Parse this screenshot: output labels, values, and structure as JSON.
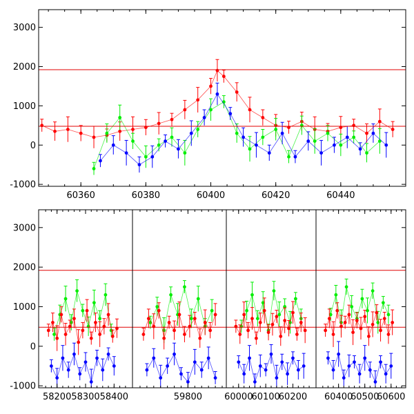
{
  "chart_data": [
    {
      "type": "scatter",
      "title": "",
      "xlabel": "",
      "ylabel": "",
      "xlim": [
        60347,
        60460
      ],
      "ylim": [
        -1050,
        3450
      ],
      "xticks": [
        60360,
        60380,
        60400,
        60420,
        60440
      ],
      "yticks": [
        -1000,
        0,
        1000,
        2000,
        3000
      ],
      "hlines": [
        1920,
        480
      ],
      "grid": false,
      "legend": "none",
      "series": [
        {
          "color": "#ff0000",
          "x": [
            60348,
            60352,
            60356,
            60360,
            60364,
            60368,
            60372,
            60376,
            60380,
            60384,
            60388,
            60392,
            60396,
            60400,
            60402,
            60404,
            60408,
            60412,
            60416,
            60420,
            60424,
            60428,
            60432,
            60436,
            60440,
            60444,
            60448,
            60452,
            60456
          ],
          "values": [
            500,
            350,
            400,
            300,
            200,
            250,
            350,
            400,
            450,
            550,
            650,
            900,
            1150,
            1500,
            1900,
            1750,
            1350,
            900,
            700,
            500,
            450,
            600,
            400,
            350,
            450,
            500,
            300,
            600,
            400
          ]
        },
        {
          "color": "#00ee00",
          "x": [
            60364,
            60368,
            60372,
            60376,
            60380,
            60384,
            60388,
            60392,
            60396,
            60400,
            60404,
            60408,
            60412,
            60416,
            60420,
            60424,
            60428,
            60432,
            60436,
            60440,
            60444,
            60448,
            60452
          ],
          "values": [
            -600,
            300,
            700,
            100,
            -300,
            0,
            200,
            -200,
            400,
            900,
            1100,
            300,
            -100,
            200,
            400,
            -300,
            500,
            100,
            300,
            0,
            200,
            -200,
            100
          ]
        },
        {
          "color": "#0000ff",
          "x": [
            60366,
            60370,
            60374,
            60378,
            60382,
            60386,
            60390,
            60394,
            60398,
            60402,
            60406,
            60410,
            60414,
            60418,
            60422,
            60426,
            60430,
            60434,
            60438,
            60442,
            60446,
            60450,
            60454
          ],
          "values": [
            -400,
            0,
            -200,
            -500,
            -300,
            100,
            -100,
            300,
            700,
            1300,
            800,
            200,
            0,
            -200,
            300,
            -300,
            100,
            -200,
            0,
            200,
            -100,
            300,
            0
          ]
        }
      ]
    },
    {
      "type": "scatter",
      "title": "",
      "xlabel": "",
      "ylabel": "",
      "broken_x_axis": true,
      "segments": [
        {
          "xlim": [
            58150,
            58450
          ],
          "xticks": [
            58200,
            58300,
            58400
          ]
        },
        {
          "xlim": [
            59650,
            59900
          ],
          "xticks": [
            59800
          ]
        },
        {
          "xlim": [
            59970,
            60270
          ],
          "xticks": [
            60000,
            60100,
            60200
          ]
        },
        {
          "xlim": [
            60330,
            60640
          ],
          "xticks": [
            60400,
            60500,
            60600
          ]
        }
      ],
      "ylim": [
        -1050,
        3450
      ],
      "yticks": [
        -1000,
        0,
        1000,
        2000,
        3000
      ],
      "hlines": [
        1920,
        480
      ],
      "grid": false,
      "legend": "none",
      "series": [
        {
          "color": "#0000ff",
          "segments": [
            {
              "x": [
                58180,
                58200,
                58220,
                58240,
                58260,
                58280,
                58300,
                58320,
                58340,
                58360,
                58380,
                58400
              ],
              "values": [
                -500,
                -800,
                -300,
                -600,
                -200,
                -700,
                -400,
                -900,
                -300,
                -600,
                -200,
                -500
              ]
            },
            {
              "x": [
                59680,
                59700,
                59720,
                59740,
                59760,
                59780,
                59800,
                59820,
                59840,
                59860,
                59880
              ],
              "values": [
                -600,
                -300,
                -800,
                -500,
                -200,
                -700,
                -900,
                -400,
                -600,
                -300,
                -800
              ]
            },
            {
              "x": [
                60000,
                60020,
                60040,
                60060,
                60080,
                60100,
                60120,
                60140,
                60160,
                60180,
                60200,
                60220,
                60240
              ],
              "values": [
                -400,
                -700,
                -300,
                -900,
                -500,
                -600,
                -200,
                -800,
                -400,
                -700,
                -300,
                -600,
                -500
              ]
            },
            {
              "x": [
                60360,
                60380,
                60400,
                60420,
                60440,
                60460,
                60480,
                60500,
                60520,
                60540,
                60560,
                60580,
                60600
              ],
              "values": [
                -300,
                -600,
                -200,
                -800,
                -500,
                -400,
                -700,
                -300,
                -600,
                -900,
                -400,
                -700,
                -500
              ]
            }
          ]
        },
        {
          "color": "#00ee00",
          "segments": [
            {
              "x": [
                58190,
                58210,
                58230,
                58250,
                58270,
                58290,
                58310,
                58330,
                58350,
                58370,
                58390
              ],
              "values": [
                300,
                800,
                1200,
                600,
                1400,
                900,
                500,
                1100,
                700,
                1300,
                400
              ]
            },
            {
              "x": [
                59690,
                59710,
                59730,
                59750,
                59770,
                59790,
                59810,
                59830,
                59850,
                59870
              ],
              "values": [
                600,
                1000,
                400,
                1300,
                800,
                1500,
                700,
                1200,
                500,
                900
              ]
            },
            {
              "x": [
                60010,
                60030,
                60050,
                60070,
                60090,
                60110,
                60130,
                60150,
                60170,
                60190,
                60210,
                60230
              ],
              "values": [
                500,
                900,
                1300,
                700,
                1100,
                400,
                1400,
                800,
                1000,
                600,
                1200,
                700
              ]
            },
            {
              "x": [
                60370,
                60390,
                60410,
                60430,
                60450,
                60470,
                60490,
                60510,
                60530,
                60550,
                60570,
                60590
              ],
              "values": [
                800,
                1300,
                600,
                1500,
                1000,
                700,
                1200,
                900,
                1400,
                600,
                1100,
                800
              ]
            }
          ]
        },
        {
          "color": "#ff0000",
          "segments": [
            {
              "x": [
                58170,
                58185,
                58200,
                58215,
                58230,
                58245,
                58260,
                58275,
                58290,
                58305,
                58320,
                58335,
                58350,
                58365,
                58380,
                58395,
                58410
              ],
              "values": [
                400,
                600,
                200,
                800,
                300,
                500,
                700,
                100,
                400,
                900,
                200,
                600,
                300,
                500,
                800,
                250,
                450
              ]
            },
            {
              "x": [
                59670,
                59685,
                59700,
                59715,
                59730,
                59745,
                59760,
                59775,
                59790,
                59805,
                59820,
                59835,
                59850,
                59865,
                59880
              ],
              "values": [
                300,
                700,
                500,
                900,
                200,
                600,
                400,
                800,
                300,
                500,
                700,
                200,
                600,
                400,
                800
              ]
            },
            {
              "x": [
                59990,
                60005,
                60020,
                60035,
                60050,
                60065,
                60080,
                60095,
                60110,
                60125,
                60140,
                60155,
                60170,
                60185,
                60200,
                60215,
                60230,
                60245
              ],
              "values": [
                500,
                300,
                800,
                400,
                700,
                200,
                600,
                900,
                350,
                550,
                750,
                250,
                650,
                450,
                850,
                300,
                600,
                400
              ]
            },
            {
              "x": [
                60350,
                60365,
                60380,
                60395,
                60410,
                60425,
                60440,
                60455,
                60470,
                60485,
                60500,
                60515,
                60530,
                60545,
                60560,
                60575,
                60590,
                60605
              ],
              "values": [
                400,
                700,
                300,
                900,
                500,
                600,
                800,
                350,
                650,
                450,
                750,
                250,
                550,
                850,
                400,
                700,
                300,
                600
              ]
            }
          ]
        }
      ]
    }
  ]
}
